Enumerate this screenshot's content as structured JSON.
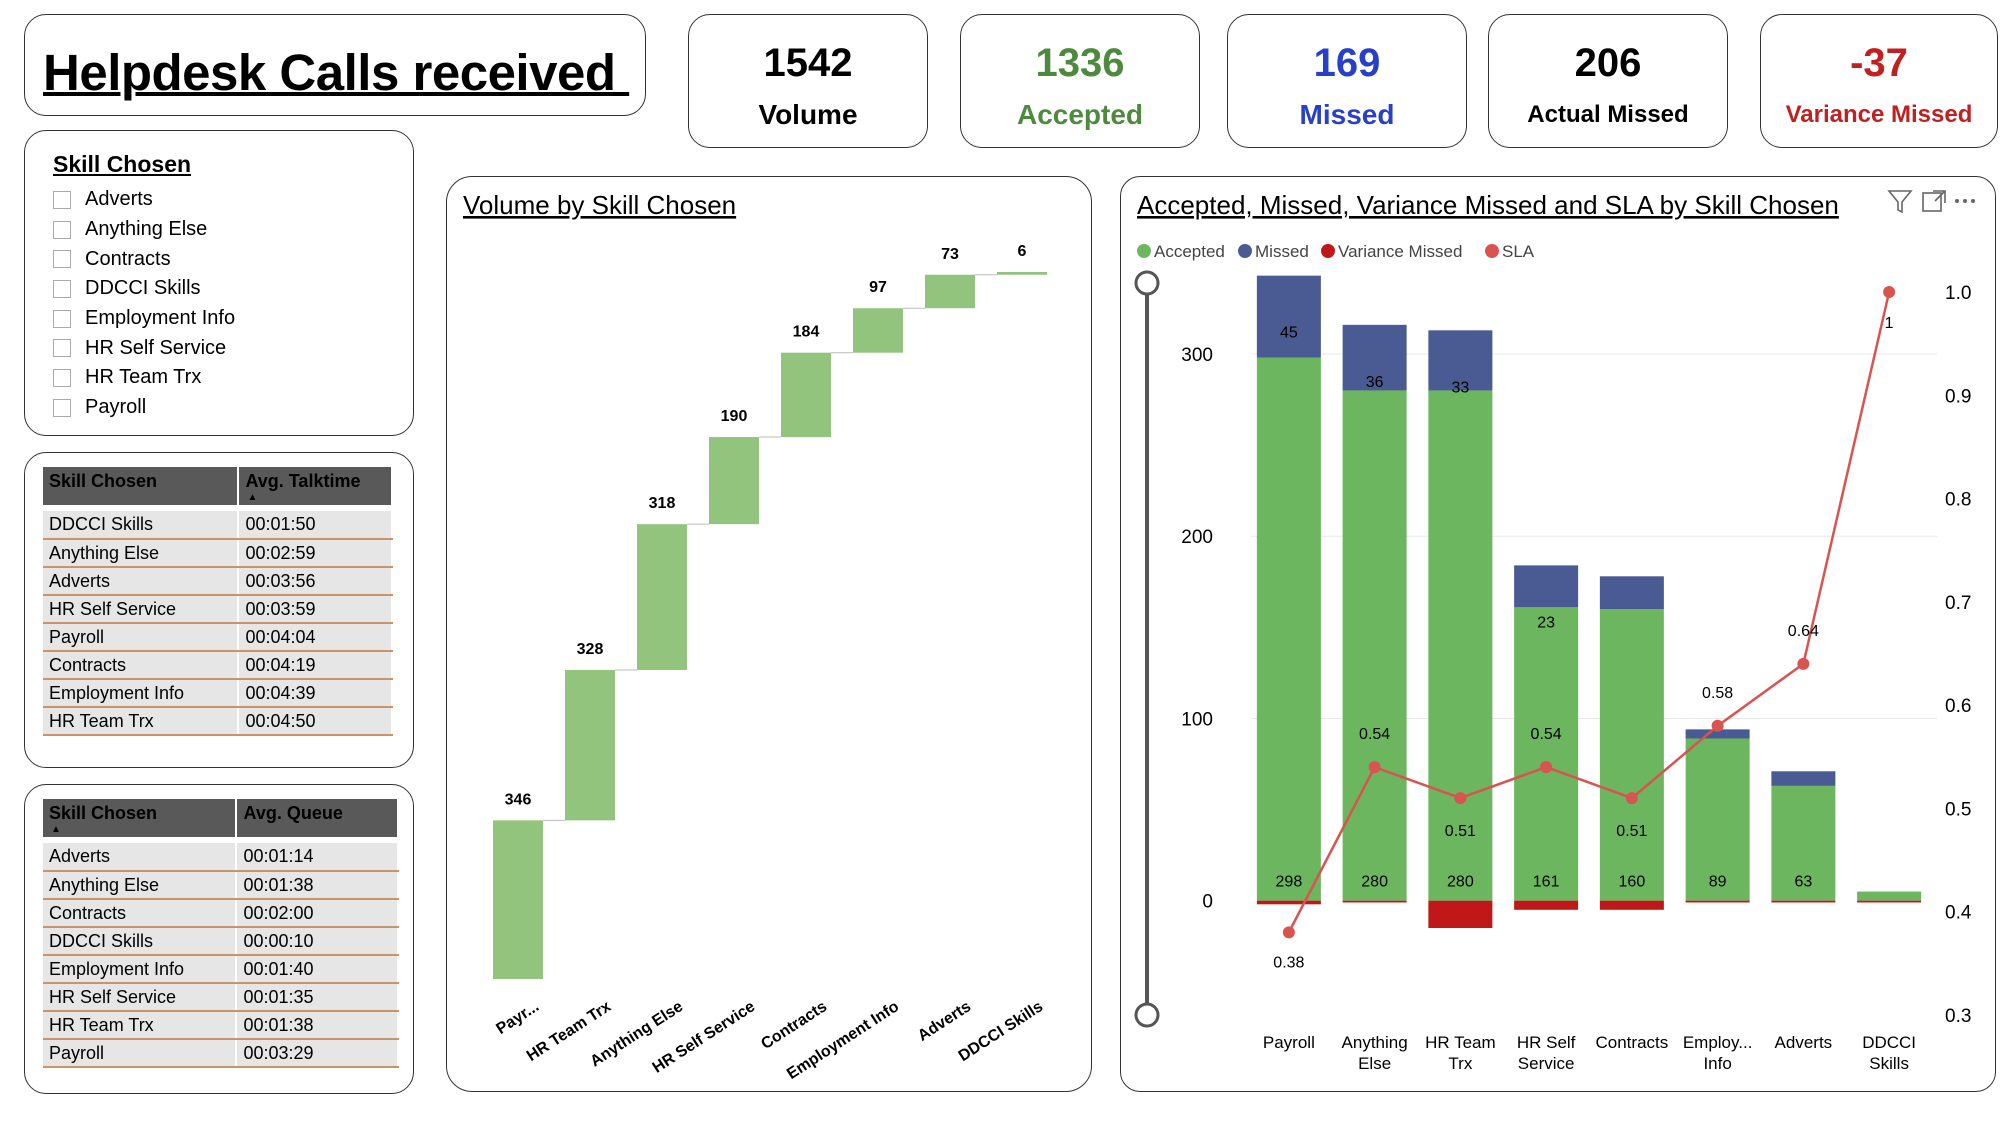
{
  "title": "Helpdesk Calls received ",
  "kpis": [
    {
      "value": "1542",
      "label": "Volume",
      "color": "#000000"
    },
    {
      "value": "1336",
      "label": "Accepted",
      "color": "#4e8a3e"
    },
    {
      "value": "169",
      "label": "Missed",
      "color": "#2840c8"
    },
    {
      "value": "206",
      "label": "Actual Missed",
      "color": "#000000"
    },
    {
      "value": "-37",
      "label": "Variance Missed",
      "color": "#c02020"
    }
  ],
  "slicer": {
    "title": "Skill Chosen",
    "items": [
      "Adverts",
      "Anything Else",
      "Contracts",
      "DDCCI Skills",
      "Employment Info",
      "HR Self Service",
      "HR Team Trx",
      "Payroll"
    ]
  },
  "talktime_table": {
    "headers": [
      "Skill Chosen",
      "Avg. Talktime"
    ],
    "rows": [
      [
        "DDCCI Skills",
        "00:01:50"
      ],
      [
        "Anything Else",
        "00:02:59"
      ],
      [
        "Adverts",
        "00:03:56"
      ],
      [
        "HR Self Service",
        "00:03:59"
      ],
      [
        "Payroll",
        "00:04:04"
      ],
      [
        "Contracts",
        "00:04:19"
      ],
      [
        "Employment Info",
        "00:04:39"
      ],
      [
        "HR Team Trx",
        "00:04:50"
      ]
    ]
  },
  "queue_table": {
    "headers": [
      "Skill Chosen",
      "Avg. Queue"
    ],
    "rows": [
      [
        "Adverts",
        "00:01:14"
      ],
      [
        "Anything Else",
        "00:01:38"
      ],
      [
        "Contracts",
        "00:02:00"
      ],
      [
        "DDCCI Skills",
        "00:00:10"
      ],
      [
        "Employment Info",
        "00:01:40"
      ],
      [
        "HR Self Service",
        "00:01:35"
      ],
      [
        "HR Team Trx",
        "00:01:38"
      ],
      [
        "Payroll",
        "00:03:29"
      ]
    ]
  },
  "chart_data": [
    {
      "type": "waterfall",
      "title": "Volume by Skill Chosen",
      "categories": [
        "Payr...",
        "HR Team Trx",
        "Anything Else",
        "HR Self Service",
        "Contracts",
        "Employment Info",
        "Adverts",
        "DDCCI Skills"
      ],
      "values": [
        346,
        328,
        318,
        190,
        184,
        97,
        73,
        6
      ],
      "colors": {
        "bar": "#93c47d"
      }
    },
    {
      "type": "bar",
      "stacked": true,
      "title": "Accepted, Missed, Variance Missed and SLA by Skill Chosen",
      "categories": [
        "Payroll",
        "Anything Else",
        "HR Team Trx",
        "HR Self Service",
        "Contracts",
        "Employ... Info",
        "Adverts",
        "DDCCI Skills"
      ],
      "series": [
        {
          "name": "Accepted",
          "color": "#6cb65f",
          "values": [
            298,
            280,
            280,
            161,
            160,
            89,
            63,
            5
          ],
          "labels": [
            "298",
            "280",
            "280",
            "161",
            "160",
            "89",
            "63",
            ""
          ]
        },
        {
          "name": "Missed",
          "color": "#4a5a92",
          "values": [
            45,
            36,
            33,
            23,
            18,
            5,
            8,
            0
          ],
          "labels": [
            "45",
            "36",
            "33",
            "23",
            "",
            "",
            "",
            ""
          ]
        },
        {
          "name": "Variance Missed",
          "color": "#c01818",
          "values": [
            -2,
            -1,
            -15,
            -5,
            -5,
            -1,
            -1,
            -1
          ]
        },
        {
          "name": "SLA",
          "color": "#d9534f",
          "type": "line",
          "axis": "right",
          "values": [
            0.38,
            0.54,
            0.51,
            0.54,
            0.51,
            0.58,
            0.64,
            1.0
          ],
          "labels": [
            "0.38",
            "0.54",
            "0.51",
            "0.54",
            "0.51",
            "0.58",
            "0.64",
            "1"
          ]
        }
      ],
      "y_left": {
        "min": -15,
        "max": 345,
        "ticks": [
          0,
          100,
          200,
          300
        ]
      },
      "y_right": {
        "min": 0.3,
        "max": 1.0,
        "ticks": [
          "0.3",
          "0.4",
          "0.5",
          "0.6",
          "0.7",
          "0.8",
          "0.9",
          "1.0"
        ]
      },
      "legend": [
        "Accepted",
        "Missed",
        "Variance Missed",
        "SLA"
      ]
    }
  ]
}
